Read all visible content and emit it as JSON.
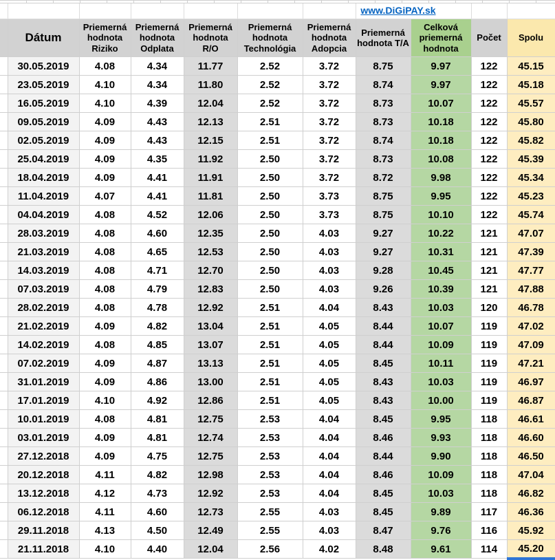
{
  "link": {
    "text": "www.DiGiPAY.sk"
  },
  "colors": {
    "header_bg": "#d2d2d2",
    "grey_col_bg": "#dbdbdb",
    "date_col_bg": "#f3f3f3",
    "green_header_bg": "#a9d08e",
    "green_col_bg": "#b5d7a3",
    "gold_header_bg": "#fbe8ad",
    "gold_col_bg": "#feedc0",
    "alert_text": "#ff0000",
    "link_blue": "#0563c1",
    "selection_blue": "#2e75d6",
    "gridline": "#cfcfcf"
  },
  "table": {
    "columns": [
      {
        "key": "datum",
        "label": "Dátum"
      },
      {
        "key": "riziko",
        "label": "Priemerná hodnota Riziko"
      },
      {
        "key": "odplata",
        "label": "Priemerná hodnota Odplata"
      },
      {
        "key": "ro",
        "label": "Priemerná hodnota R/O"
      },
      {
        "key": "technologia",
        "label": "Priemerná hodnota Technológia"
      },
      {
        "key": "adopcia",
        "label": "Priemerná hodnota Adopcia"
      },
      {
        "key": "ta",
        "label": "Priemerná hodnota T/A"
      },
      {
        "key": "celkova",
        "label": "Celková priemerná hodnota"
      },
      {
        "key": "pocet",
        "label": "Počet"
      },
      {
        "key": "spolu",
        "label": "Spolu"
      }
    ],
    "rows": [
      [
        "30.05.2019",
        "4.08",
        "4.34",
        "11.77",
        "2.52",
        "3.72",
        "8.75",
        "9.97",
        "122",
        "45.15"
      ],
      [
        "23.05.2019",
        "4.10",
        "4.34",
        "11.80",
        "2.52",
        "3.72",
        "8.74",
        "9.97",
        "122",
        "45.18"
      ],
      [
        "16.05.2019",
        "4.10",
        "4.39",
        "12.04",
        "2.52",
        "3.72",
        "8.73",
        "10.07",
        "122",
        "45.57"
      ],
      [
        "09.05.2019",
        "4.09",
        "4.43",
        "12.13",
        "2.51",
        "3.72",
        "8.73",
        "10.18",
        "122",
        "45.80"
      ],
      [
        "02.05.2019",
        "4.09",
        "4.43",
        "12.15",
        "2.51",
        "3.72",
        "8.74",
        "10.18",
        "122",
        "45.82"
      ],
      [
        "25.04.2019",
        "4.09",
        "4.35",
        "11.92",
        "2.50",
        "3.72",
        "8.73",
        "10.08",
        "122",
        "45.39"
      ],
      [
        "18.04.2019",
        "4.09",
        "4.41",
        "11.91",
        "2.50",
        "3.72",
        "8.72",
        "9.98",
        "122",
        "45.34"
      ],
      [
        "11.04.2019",
        "4.07",
        "4.41",
        "11.81",
        "2.50",
        "3.73",
        "8.75",
        "9.95",
        "122",
        "45.23"
      ],
      [
        "04.04.2019",
        "4.08",
        "4.52",
        "12.06",
        "2.50",
        "3.73",
        "8.75",
        "10.10",
        "122",
        "45.74"
      ],
      [
        "28.03.2019",
        "4.08",
        "4.60",
        "12.35",
        "2.50",
        "4.03",
        "9.27",
        "10.22",
        "121",
        "47.07"
      ],
      [
        "21.03.2019",
        "4.08",
        "4.65",
        "12.53",
        "2.50",
        "4.03",
        "9.27",
        "10.31",
        "121",
        "47.39"
      ],
      [
        "14.03.2019",
        "4.08",
        "4.71",
        "12.70",
        "2.50",
        "4.03",
        "9.28",
        "10.45",
        "121",
        "47.77"
      ],
      [
        "07.03.2019",
        "4.08",
        "4.79",
        "12.83",
        "2.50",
        "4.03",
        "9.26",
        "10.39",
        "121",
        "47.88"
      ],
      [
        "28.02.2019",
        "4.08",
        "4.78",
        "12.92",
        "2.51",
        "4.04",
        "8.43",
        "10.03",
        "120",
        "46.78"
      ],
      [
        "21.02.2019",
        "4.09",
        "4.82",
        "13.04",
        "2.51",
        "4.05",
        "8.44",
        "10.07",
        "119",
        "47.02"
      ],
      [
        "14.02.2019",
        "4.08",
        "4.85",
        "13.07",
        "2.51",
        "4.05",
        "8.44",
        "10.09",
        "119",
        "47.09"
      ],
      [
        "07.02.2019",
        "4.09",
        "4.87",
        "13.13",
        "2.51",
        "4.05",
        "8.45",
        "10.11",
        "119",
        "47.21"
      ],
      [
        "31.01.2019",
        "4.09",
        "4.86",
        "13.00",
        "2.51",
        "4.05",
        "8.43",
        "10.03",
        "119",
        "46.97"
      ],
      [
        "17.01.2019",
        "4.10",
        "4.92",
        "12.86",
        "2.51",
        "4.05",
        "8.43",
        "10.00",
        "119",
        "46.87"
      ],
      [
        "10.01.2019",
        "4.08",
        "4.81",
        "12.75",
        "2.53",
        "4.04",
        "8.45",
        "9.95",
        "118",
        "46.61"
      ],
      [
        "03.01.2019",
        "4.09",
        "4.81",
        "12.74",
        "2.53",
        "4.04",
        "8.46",
        "9.93",
        "118",
        "46.60"
      ],
      [
        "27.12.2018",
        "4.09",
        "4.75",
        "12.75",
        "2.53",
        "4.04",
        "8.44",
        "9.90",
        "118",
        "46.50"
      ],
      [
        "20.12.2018",
        "4.11",
        "4.82",
        "12.98",
        "2.53",
        "4.04",
        "8.46",
        "10.09",
        "118",
        "47.04"
      ],
      [
        "13.12.2018",
        "4.12",
        "4.73",
        "12.92",
        "2.53",
        "4.04",
        "8.45",
        "10.03",
        "118",
        "46.82"
      ],
      [
        "06.12.2018",
        "4.11",
        "4.60",
        "12.73",
        "2.55",
        "4.03",
        "8.45",
        "9.89",
        "117",
        "46.36"
      ],
      [
        "29.11.2018",
        "4.13",
        "4.50",
        "12.49",
        "2.55",
        "4.03",
        "8.47",
        "9.76",
        "116",
        "45.92"
      ],
      [
        "21.11.2018",
        "4.10",
        "4.40",
        "12.04",
        "2.56",
        "4.02",
        "8.48",
        "9.61",
        "114",
        "45.20"
      ]
    ],
    "alerts": [
      {
        "row": 0,
        "cols": [
          "ro",
          "ta",
          "celkova"
        ]
      }
    ],
    "selection": {
      "row": 26,
      "col": "spolu"
    }
  }
}
